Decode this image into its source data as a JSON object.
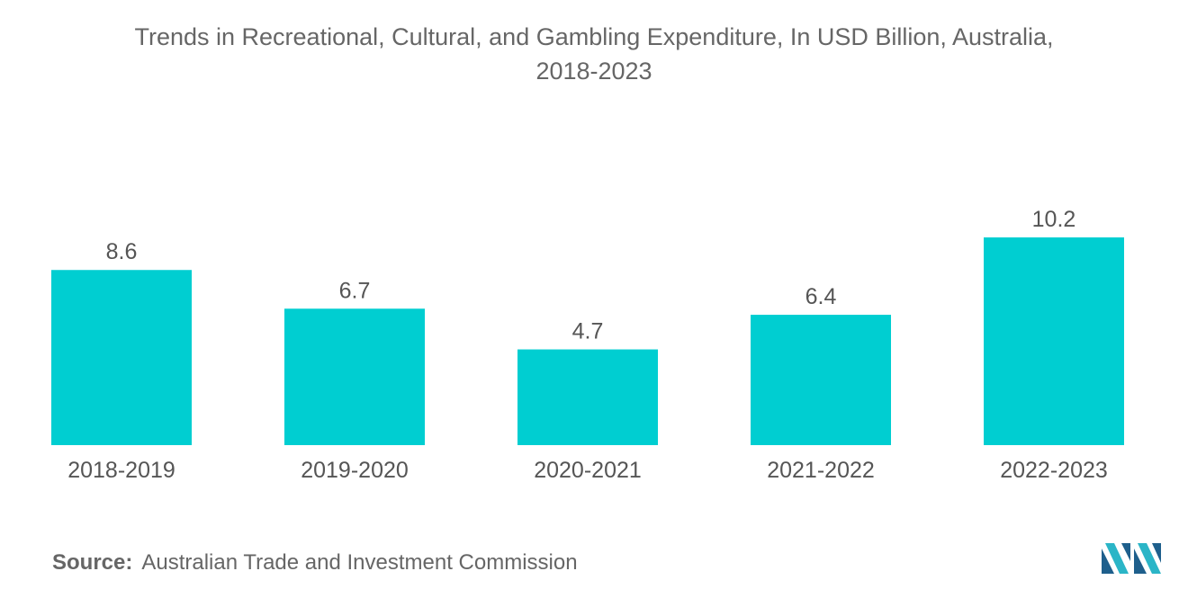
{
  "chart_data": {
    "type": "bar",
    "title_line1": "Trends in Recreational, Cultural, and Gambling Expenditure, In USD Billion, Australia,",
    "title_line2": "2018-2023",
    "categories": [
      "2018-2019",
      "2019-2020",
      "2020-2021",
      "2021-2022",
      "2022-2023"
    ],
    "values": [
      8.6,
      6.7,
      4.7,
      6.4,
      10.2
    ],
    "value_labels": [
      "8.6",
      "6.7",
      "4.7",
      "6.4",
      "10.2"
    ],
    "xlabel": "",
    "ylabel": "",
    "ylim": [
      0,
      10.2
    ],
    "grid": false,
    "bar_color": "#00CED1"
  },
  "footer": {
    "source_label": "Source:",
    "source_text": "Australian Trade and Investment Commission"
  },
  "logo": {
    "icon": "mordor-intelligence-logo-icon",
    "colors": [
      "#1E5F8C",
      "#2BB5C7"
    ]
  }
}
